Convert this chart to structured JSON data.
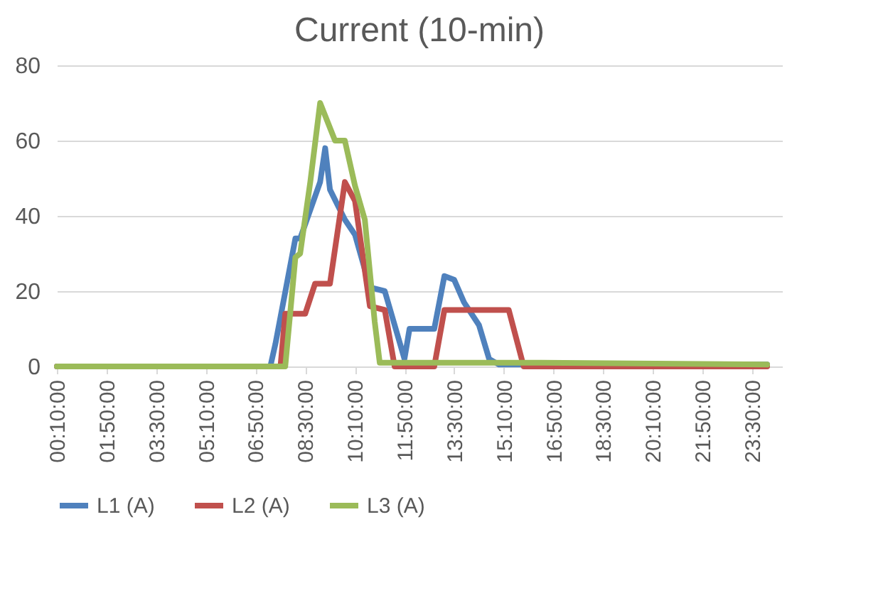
{
  "chart_data": {
    "type": "line",
    "title": "Current (10-min)",
    "xlim": [
      0.1667,
      24.5
    ],
    "ylim": [
      0,
      80
    ],
    "yticks": [
      0,
      20,
      40,
      60,
      80
    ],
    "xticks": [
      {
        "value": 0.1667,
        "label": "00:10:00"
      },
      {
        "value": 1.8333,
        "label": "01:50:00"
      },
      {
        "value": 3.5,
        "label": "03:30:00"
      },
      {
        "value": 5.1667,
        "label": "05:10:00"
      },
      {
        "value": 6.8333,
        "label": "06:50:00"
      },
      {
        "value": 8.5,
        "label": "08:30:00"
      },
      {
        "value": 10.1667,
        "label": "10:10:00"
      },
      {
        "value": 11.8333,
        "label": "11:50:00"
      },
      {
        "value": 13.5,
        "label": "13:30:00"
      },
      {
        "value": 15.1667,
        "label": "15:10:00"
      },
      {
        "value": 16.8333,
        "label": "16:50:00"
      },
      {
        "value": 18.5,
        "label": "18:30:00"
      },
      {
        "value": 20.1667,
        "label": "20:10:00"
      },
      {
        "value": 21.8333,
        "label": "21:50:00"
      },
      {
        "value": 23.5,
        "label": "23:30:00"
      }
    ],
    "grid": "y",
    "legend": "bottom",
    "marker": "none",
    "line_style": "solid",
    "series": [
      {
        "name": "L1 (A)",
        "color": "#4f81bd",
        "x": [
          0.1667,
          7.33,
          7.5,
          8.17,
          8.33,
          9.0,
          9.17,
          9.33,
          9.83,
          10.17,
          10.67,
          11.17,
          11.83,
          12.0,
          12.83,
          13.17,
          13.5,
          13.83,
          14.33,
          14.67,
          15.0,
          24.0
        ],
        "values": [
          0,
          0,
          6,
          34,
          34,
          49,
          58,
          47,
          39,
          35,
          21,
          20,
          2,
          10,
          10,
          24,
          23,
          17,
          11,
          2,
          0.5,
          0.5
        ]
      },
      {
        "name": "L2 (A)",
        "color": "#c0504d",
        "x": [
          0.1667,
          7.67,
          7.83,
          8.5,
          8.83,
          9.33,
          9.83,
          10.17,
          10.67,
          11.17,
          11.5,
          12.83,
          13.17,
          15.33,
          15.83,
          24.0
        ],
        "values": [
          0,
          0,
          14,
          14,
          22,
          22,
          49,
          44,
          16,
          15,
          0,
          0,
          15,
          15,
          0,
          0
        ]
      },
      {
        "name": "L3 (A)",
        "color": "#9bbb59",
        "x": [
          0.1667,
          7.83,
          8.17,
          8.33,
          8.67,
          9.0,
          9.5,
          9.83,
          10.17,
          10.5,
          10.83,
          11.0,
          16.0,
          24.0
        ],
        "values": [
          0,
          0,
          29,
          30,
          49,
          70,
          60,
          60,
          48,
          39,
          12,
          1,
          1,
          0.5
        ]
      }
    ]
  }
}
